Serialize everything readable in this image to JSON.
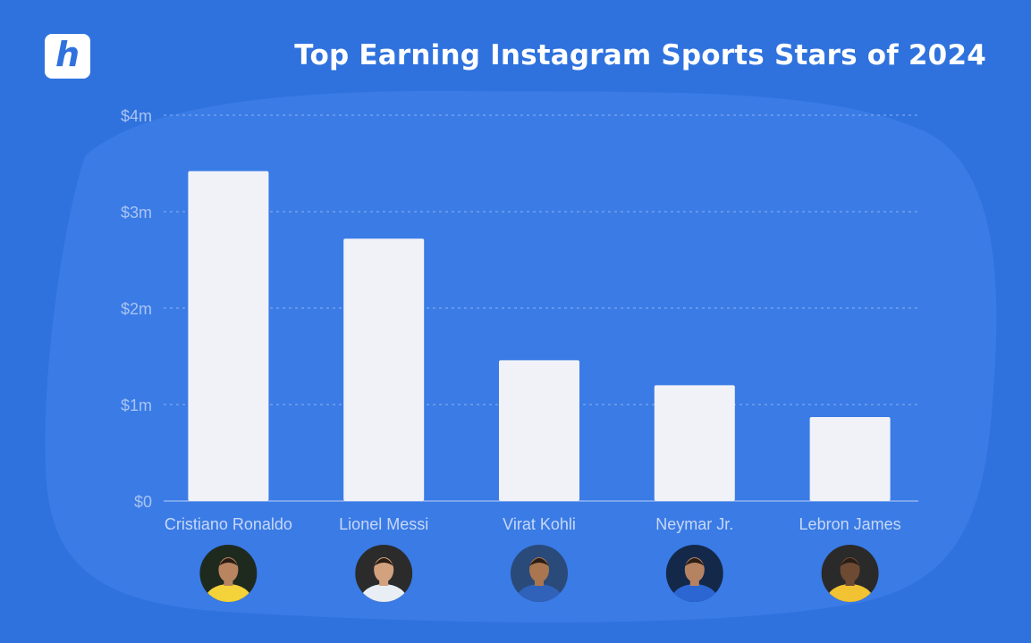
{
  "header": {
    "logo_letter": "h",
    "title": "Top Earning Instagram Sports Stars of 2024"
  },
  "colors": {
    "background": "#2f72de",
    "blob": "#3a7be6",
    "bar": "#f1f2f7",
    "grid": "#8fb3ef",
    "tick_text": "#a9c4f2",
    "category_text": "#c7d8f6"
  },
  "chart_data": {
    "type": "bar",
    "title": "Top Earning Instagram Sports Stars of 2024",
    "xlabel": "",
    "ylabel": "",
    "categories": [
      "Cristiano Ronaldo",
      "Lionel Messi",
      "Virat Kohli",
      "Neymar Jr.",
      "Lebron James"
    ],
    "values": [
      3.42,
      2.72,
      1.46,
      1.2,
      0.87
    ],
    "unit": "millions USD",
    "ylim": [
      0,
      4
    ],
    "yticks": [
      0,
      1,
      2,
      3,
      4
    ],
    "ytick_labels": [
      "$0",
      "$1m",
      "$2m",
      "$3m",
      "$4m"
    ],
    "grid": true,
    "legend": "none"
  },
  "avatars": [
    {
      "icon": "player-avatar-icon",
      "bg": "#1f2a1f",
      "shirt": "#f4d23a",
      "skin": "#b98561"
    },
    {
      "icon": "player-avatar-icon",
      "bg": "#2b2b2b",
      "shirt": "#e9eef5",
      "skin": "#d2a27e"
    },
    {
      "icon": "player-avatar-icon",
      "bg": "#2a4a7a",
      "shirt": "#2f62b8",
      "skin": "#a9764f"
    },
    {
      "icon": "player-avatar-icon",
      "bg": "#14284a",
      "shirt": "#2b66d2",
      "skin": "#b58362"
    },
    {
      "icon": "player-avatar-icon",
      "bg": "#2a2a2a",
      "shirt": "#f1c232",
      "skin": "#6e4a33"
    }
  ]
}
